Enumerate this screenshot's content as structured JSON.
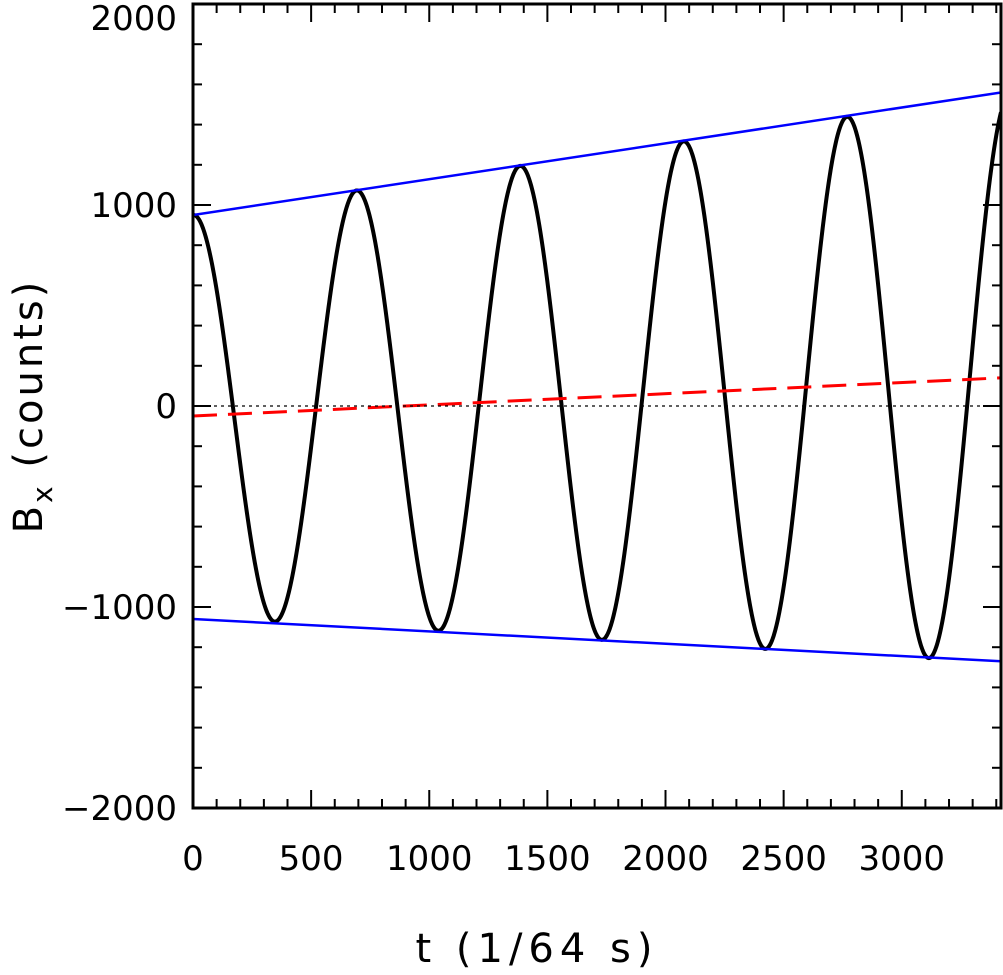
{
  "chart_data": {
    "type": "line",
    "xlabel": "t (1/64 s)",
    "ylabel_main": "B",
    "ylabel_sub": "x",
    "ylabel_rest": " (counts)",
    "xlim": [
      0,
      3420
    ],
    "ylim": [
      -2000,
      2000
    ],
    "x_ticks": [
      0,
      500,
      1000,
      1500,
      2000,
      2500,
      3000
    ],
    "x_tick_labels": [
      "0",
      "500",
      "1000",
      "1500",
      "2000",
      "2500",
      "3000"
    ],
    "y_ticks": [
      -2000,
      -1000,
      0,
      1000,
      2000
    ],
    "y_tick_labels": [
      "−2000",
      "−1000",
      "0",
      "1000",
      "2000"
    ],
    "grid": false,
    "series": [
      {
        "kind": "signal",
        "color": "#000000",
        "style": "solid",
        "model": "offset + amplitude * cos(2*pi*t/period)",
        "period": 692,
        "amplitude_start": 1000,
        "amplitude_end": 1414,
        "offset_start": -50,
        "offset_end": 140,
        "x_range": [
          0,
          3420
        ]
      },
      {
        "kind": "upper-envelope",
        "color": "#0000ff",
        "style": "solid",
        "x": [
          0,
          3420
        ],
        "y": [
          950,
          1560
        ]
      },
      {
        "kind": "lower-envelope",
        "color": "#0000ff",
        "style": "solid",
        "x": [
          0,
          3420
        ],
        "y": [
          -1060,
          -1270
        ]
      },
      {
        "kind": "mean-trend",
        "color": "#ff0000",
        "style": "dashed",
        "x": [
          0,
          3420
        ],
        "y": [
          -50,
          140
        ]
      },
      {
        "kind": "zero-line",
        "color": "#000000",
        "style": "dotted",
        "x": [
          0,
          3420
        ],
        "y": [
          0,
          0
        ]
      }
    ]
  }
}
